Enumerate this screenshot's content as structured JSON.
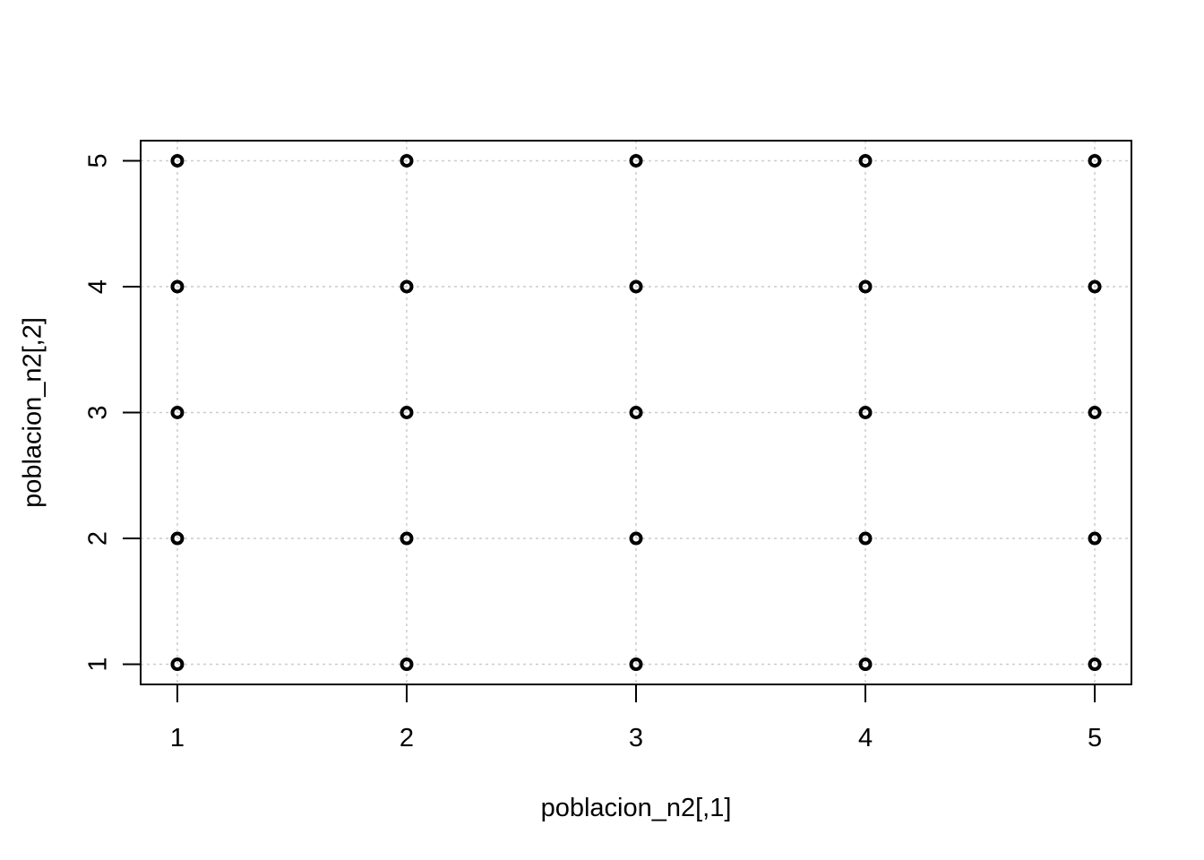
{
  "chart_data": {
    "type": "scatter",
    "title": "",
    "xlabel": "poblacion_n2[,1]",
    "ylabel": "poblacion_n2[,2]",
    "xlim": [
      0.84,
      5.16
    ],
    "ylim": [
      0.84,
      5.16
    ],
    "x_ticks": [
      1,
      2,
      3,
      4,
      5
    ],
    "y_ticks": [
      1,
      2,
      3,
      4,
      5
    ],
    "grid": true,
    "grid_color": "#cccccc",
    "point_color": "#000000",
    "points": [
      {
        "x": 1,
        "y": 1
      },
      {
        "x": 1,
        "y": 2
      },
      {
        "x": 1,
        "y": 3
      },
      {
        "x": 1,
        "y": 4
      },
      {
        "x": 1,
        "y": 5
      },
      {
        "x": 2,
        "y": 1
      },
      {
        "x": 2,
        "y": 2
      },
      {
        "x": 2,
        "y": 3
      },
      {
        "x": 2,
        "y": 4
      },
      {
        "x": 2,
        "y": 5
      },
      {
        "x": 3,
        "y": 1
      },
      {
        "x": 3,
        "y": 2
      },
      {
        "x": 3,
        "y": 3
      },
      {
        "x": 3,
        "y": 4
      },
      {
        "x": 3,
        "y": 5
      },
      {
        "x": 4,
        "y": 1
      },
      {
        "x": 4,
        "y": 2
      },
      {
        "x": 4,
        "y": 3
      },
      {
        "x": 4,
        "y": 4
      },
      {
        "x": 4,
        "y": 5
      },
      {
        "x": 5,
        "y": 1
      },
      {
        "x": 5,
        "y": 2
      },
      {
        "x": 5,
        "y": 3
      },
      {
        "x": 5,
        "y": 4
      },
      {
        "x": 5,
        "y": 5
      }
    ]
  }
}
